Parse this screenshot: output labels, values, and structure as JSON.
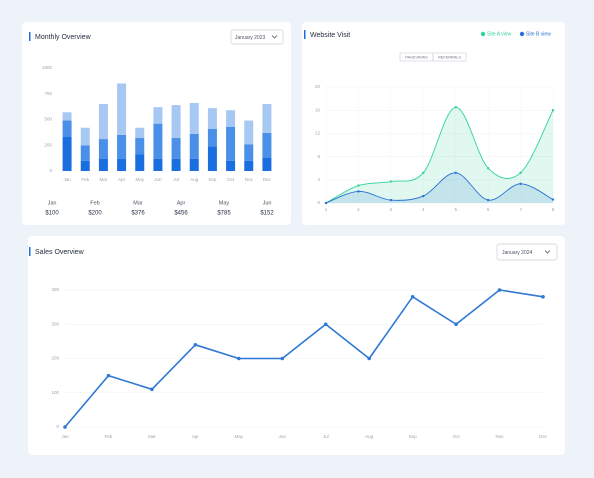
{
  "chart_data": [
    {
      "type": "stacked-bar",
      "title": "Monthly Overview",
      "dropdown": "January 2023",
      "categories": [
        "Jan",
        "Feb",
        "Mar",
        "Apr",
        "May",
        "Jun",
        "Jul",
        "Aug",
        "Sep",
        "Oct",
        "Nov",
        "Dec"
      ],
      "series": [
        {
          "color": "#1a6fe0",
          "values": [
            330,
            100,
            120,
            120,
            160,
            120,
            120,
            120,
            240,
            100,
            100,
            130
          ]
        },
        {
          "color": "#4a8fe8",
          "values": [
            160,
            150,
            190,
            230,
            160,
            340,
            200,
            240,
            170,
            330,
            160,
            240
          ]
        },
        {
          "color": "#a8c8f4",
          "values": [
            80,
            170,
            340,
            500,
            100,
            160,
            320,
            300,
            200,
            160,
            230,
            280
          ]
        }
      ],
      "ylim": [
        0,
        1000
      ],
      "yticks": [
        0,
        250,
        500,
        750,
        1000
      ],
      "summary": {
        "months": [
          "Jan",
          "Feb",
          "Mar",
          "Apr",
          "May",
          "Jun"
        ],
        "amounts": [
          "$100",
          "$200",
          "$376",
          "$456",
          "$785",
          "$152"
        ]
      }
    },
    {
      "type": "area",
      "title": "Website Visit",
      "tabs": [
        "PAGEVIEWS",
        "REFERRALS"
      ],
      "legend": "top-right",
      "x": [
        1,
        2,
        3,
        4,
        5,
        6,
        7,
        8
      ],
      "xlim": [
        1,
        8
      ],
      "xticks": [
        1,
        2,
        3,
        4,
        5,
        6,
        7,
        8
      ],
      "series": [
        {
          "name": "Site A view",
          "color": "#2fd39a",
          "values": [
            0,
            3,
            3.7,
            5.2,
            16.5,
            6,
            5.2,
            16
          ]
        },
        {
          "name": "Site B view",
          "color": "#2a6fd6",
          "values": [
            0,
            2,
            0.5,
            1.2,
            5.2,
            0.5,
            3.3,
            0.6
          ]
        }
      ],
      "ylim": [
        0,
        20
      ],
      "yticks": [
        0,
        4,
        8,
        12,
        16,
        20
      ],
      "grid": true
    },
    {
      "type": "line",
      "title": "Sales Overview",
      "dropdown": "January 2024",
      "categories": [
        "Jan",
        "Feb",
        "Mar",
        "Apr",
        "May",
        "Jun",
        "Jul",
        "Aug",
        "Sep",
        "Oct",
        "Nov",
        "Dec"
      ],
      "values": [
        0,
        150,
        110,
        240,
        200,
        200,
        300,
        200,
        380,
        300,
        400,
        380
      ],
      "color": "#2f78d6",
      "ylim": [
        0,
        400
      ],
      "yticks": [
        0,
        100,
        200,
        300,
        400
      ],
      "grid": true
    }
  ]
}
